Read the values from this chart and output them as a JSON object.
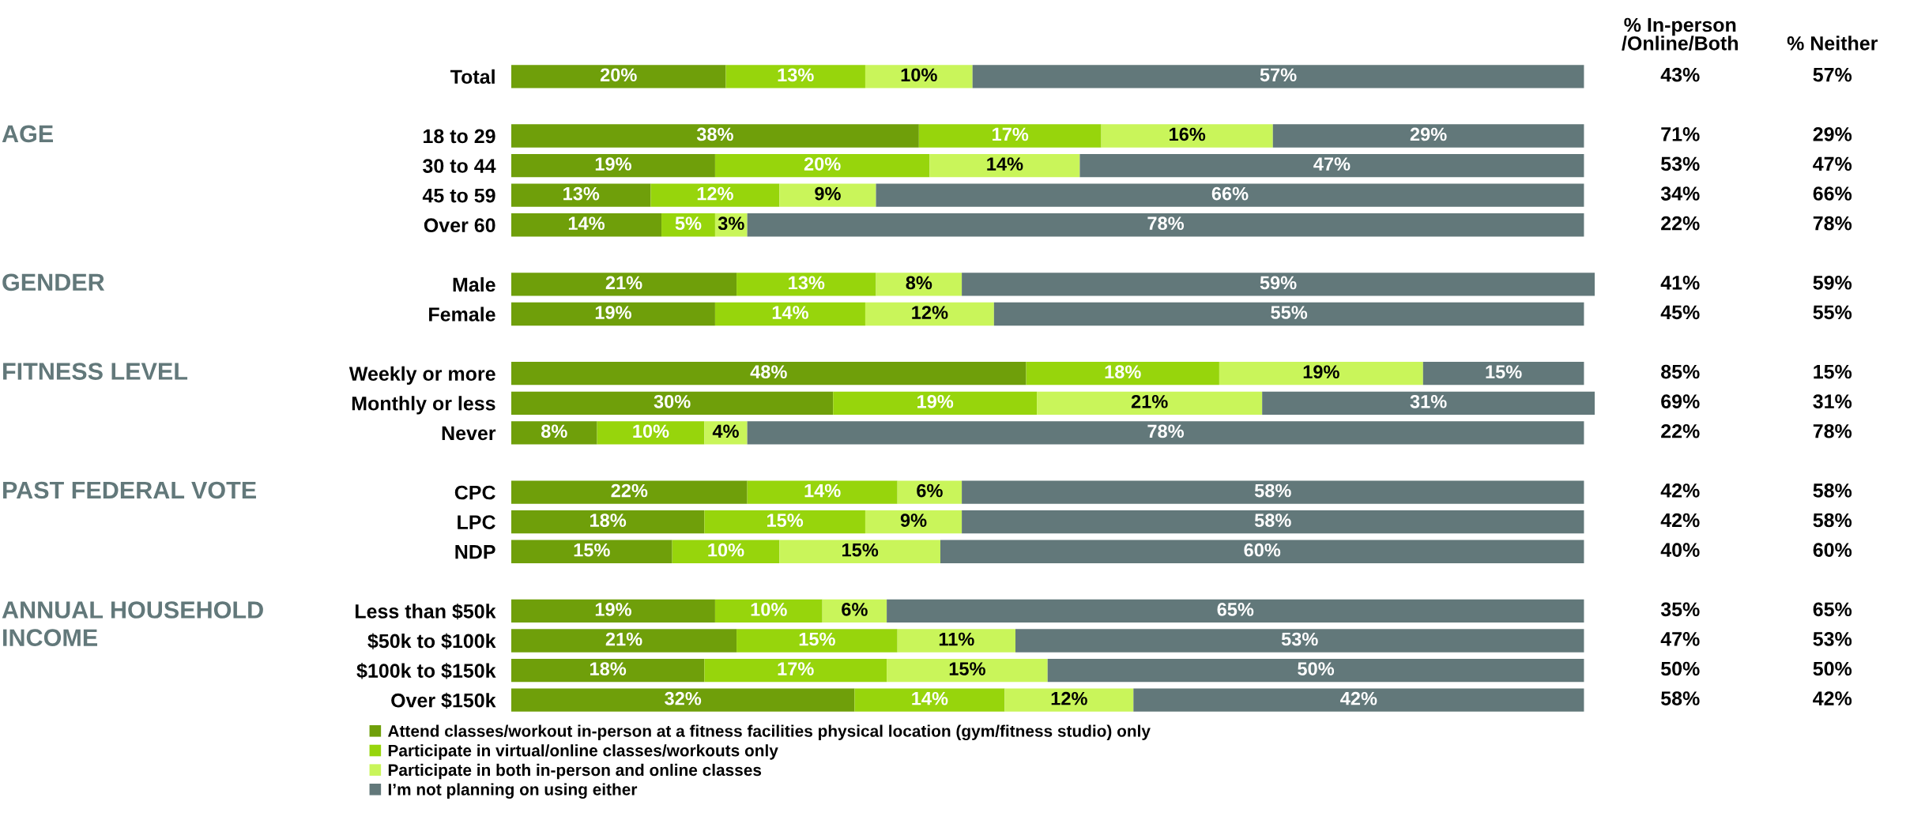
{
  "chart_data": [
    {
      "type": "bar",
      "orientation": "horizontal",
      "stacked": true,
      "legend": "bottom",
      "grid": false,
      "tick_labels": "y",
      "categories": [
        "Total",
        null,
        "18 to 29",
        "30 to 44",
        "45 to 59",
        "Over 60",
        null,
        "Male",
        "Female",
        null,
        "Weekly or more",
        "Monthly or less",
        "Never",
        null,
        "CPC",
        "LPC",
        "NDP",
        null,
        "Less than $50k",
        "$50k to $100k",
        "$100k to $150k",
        "Over $150k"
      ],
      "series": [
        {
          "name": "Attend classes/workout in-person at a fitness facilities physical location (gym/fitness studio) only",
          "color": "#6f9f0a",
          "values": [
            20,
            null,
            38,
            19,
            13,
            14,
            null,
            21,
            19,
            null,
            48,
            30,
            8,
            null,
            22,
            18,
            15,
            null,
            19,
            21,
            18,
            32
          ],
          "value_labels": [
            "20%",
            null,
            "38%",
            "19%",
            "13%",
            "14%",
            null,
            "21%",
            "19%",
            null,
            "48%",
            "30%",
            "8%",
            null,
            "22%",
            "18%",
            "15%",
            null,
            "19%",
            "21%",
            "18%",
            "32%"
          ]
        },
        {
          "name": "Participate in virtual/online classes/workouts only",
          "color": "#97d50c",
          "values": [
            13,
            null,
            17,
            20,
            12,
            5,
            null,
            13,
            14,
            null,
            18,
            19,
            10,
            null,
            14,
            15,
            10,
            null,
            10,
            15,
            17,
            14
          ],
          "value_labels": [
            "13%",
            null,
            "17%",
            "20%",
            "12%",
            "5%",
            null,
            "13%",
            "14%",
            null,
            "18%",
            "19%",
            "10%",
            null,
            "14%",
            "15%",
            "10%",
            null,
            "10%",
            "15%",
            "17%",
            "14%"
          ]
        },
        {
          "name": "Participate in both in-person and online classes",
          "color": "#c9f55a",
          "values": [
            10,
            null,
            16,
            14,
            9,
            3,
            null,
            8,
            12,
            null,
            19,
            21,
            4,
            null,
            6,
            9,
            15,
            null,
            6,
            11,
            15,
            12
          ],
          "value_labels": [
            "10%",
            null,
            "16%",
            "14%",
            "9%",
            "3%",
            null,
            "8%",
            "12%",
            null,
            "19%",
            "21%",
            "4%",
            null,
            "6%",
            "9%",
            "15%",
            null,
            "6%",
            "11%",
            "15%",
            "12%"
          ]
        },
        {
          "name": "I’m not planning on using either",
          "color": "#62787a",
          "values": [
            57,
            null,
            29,
            47,
            66,
            78,
            null,
            59,
            55,
            null,
            15,
            31,
            78,
            null,
            58,
            58,
            60,
            null,
            65,
            53,
            50,
            42
          ],
          "value_labels": [
            "57%",
            null,
            "29%",
            "47%",
            "66%",
            "78%",
            null,
            "59%",
            "55%",
            null,
            "15%",
            "31%",
            "78%",
            null,
            "58%",
            "58%",
            "60%",
            null,
            "65%",
            "53%",
            "50%",
            "42%"
          ]
        }
      ],
      "annotations": [
        "AGE",
        "GENDER",
        "FITNESS LEVEL",
        "PAST FEDERAL VOTE",
        "ANNUAL HOUSEHOLD\nINCOME"
      ]
    },
    {
      "type": "other",
      "categories": [
        "% In-person\n/Online/Both",
        "% Neither"
      ],
      "annotations": [
        "43%",
        "57%",
        "71%",
        "29%",
        "53%",
        "47%",
        "34%",
        "66%",
        "22%",
        "78%",
        "41%",
        "59%",
        "45%",
        "55%",
        "85%",
        "15%",
        "69%",
        "31%",
        "22%",
        "78%",
        "42%",
        "58%",
        "42%",
        "58%",
        "40%",
        "60%",
        "35%",
        "65%",
        "47%",
        "53%",
        "50%",
        "50%",
        "58%",
        "42%"
      ]
    }
  ]
}
